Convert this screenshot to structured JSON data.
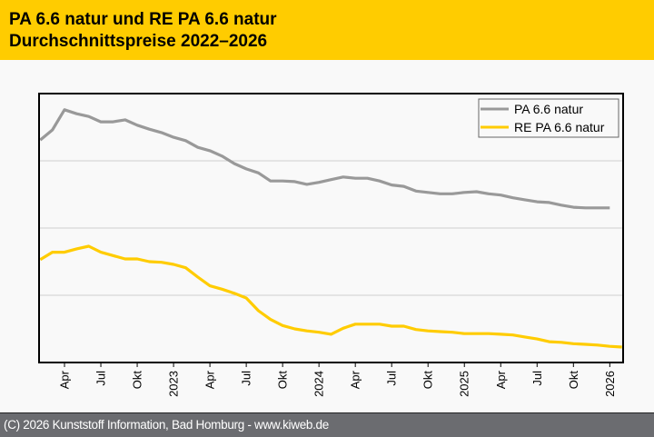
{
  "header": {
    "title_line1": "PA 6.6 natur und RE PA 6.6 natur",
    "title_line2": "Durchschnittspreise 2022–2026"
  },
  "footer": {
    "copyright": "(C) 2026 Kunststoff Information, Bad Homburg - www.kiweb.de"
  },
  "chart_data": {
    "type": "line",
    "title": "PA 6.6 natur und RE PA 6.6 natur — Durchschnittspreise 2022–2026",
    "xlabel": "",
    "ylabel": "",
    "y_units": "relative index (no y-axis labels shown; gridline step = 1)",
    "ylim": [
      0,
      4
    ],
    "grid": true,
    "legend_position": "top-right",
    "x_start": "2022-02",
    "x_ticks": [
      {
        "month_index": 2,
        "label": "Apr"
      },
      {
        "month_index": 5,
        "label": "Jul"
      },
      {
        "month_index": 8,
        "label": "Okt"
      },
      {
        "month_index": 11,
        "label": "2023"
      },
      {
        "month_index": 14,
        "label": "Apr"
      },
      {
        "month_index": 17,
        "label": "Jul"
      },
      {
        "month_index": 20,
        "label": "Okt"
      },
      {
        "month_index": 23,
        "label": "2024"
      },
      {
        "month_index": 26,
        "label": "Apr"
      },
      {
        "month_index": 29,
        "label": "Jul"
      },
      {
        "month_index": 32,
        "label": "Okt"
      },
      {
        "month_index": 35,
        "label": "2025"
      },
      {
        "month_index": 38,
        "label": "Apr"
      },
      {
        "month_index": 41,
        "label": "Jul"
      },
      {
        "month_index": 44,
        "label": "Okt"
      },
      {
        "month_index": 47,
        "label": "2026"
      }
    ],
    "x_range_months": [
      -0.1,
      48.1
    ],
    "series": [
      {
        "name": "PA 6.6 natur",
        "color": "#999999",
        "values": [
          3.31,
          3.46,
          3.76,
          3.7,
          3.66,
          3.58,
          3.58,
          3.61,
          3.53,
          3.47,
          3.42,
          3.35,
          3.3,
          3.2,
          3.15,
          3.07,
          2.96,
          2.88,
          2.82,
          2.7,
          2.7,
          2.69,
          2.65,
          2.68,
          2.72,
          2.76,
          2.74,
          2.74,
          2.7,
          2.64,
          2.62,
          2.55,
          2.53,
          2.51,
          2.51,
          2.53,
          2.54,
          2.51,
          2.49,
          2.45,
          2.42,
          2.39,
          2.38,
          2.34,
          2.31,
          2.3,
          2.3,
          2.3
        ]
      },
      {
        "name": "RE PA 6.6 natur",
        "color": "#ffcc00",
        "values": [
          1.53,
          1.64,
          1.64,
          1.69,
          1.73,
          1.64,
          1.59,
          1.54,
          1.54,
          1.5,
          1.49,
          1.46,
          1.41,
          1.27,
          1.14,
          1.09,
          1.03,
          0.96,
          0.77,
          0.64,
          0.55,
          0.5,
          0.47,
          0.45,
          0.42,
          0.51,
          0.57,
          0.57,
          0.57,
          0.54,
          0.54,
          0.49,
          0.47,
          0.46,
          0.45,
          0.43,
          0.43,
          0.43,
          0.42,
          0.41,
          0.38,
          0.35,
          0.31,
          0.3,
          0.28,
          0.27,
          0.26,
          0.24,
          0.23
        ]
      }
    ]
  }
}
